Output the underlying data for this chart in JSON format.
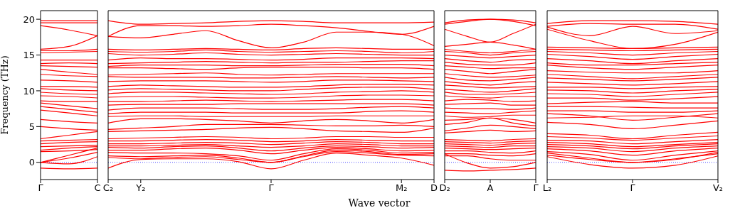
{
  "chart_data": [
    {
      "type": "line",
      "ylabel": "Frequency (THz)",
      "color": "#ff0000",
      "categories": [
        "Γ",
        null,
        "C"
      ],
      "ylim": [
        -2.4,
        21.2
      ],
      "yticks": [
        0,
        5,
        10,
        15,
        20
      ],
      "ref_lines": [
        {
          "axis": "y",
          "value": 0,
          "color": "#0000ff",
          "line_style": "dotted"
        }
      ],
      "series": [
        {
          "values": [
            19.8,
            19.8,
            19.8
          ]
        },
        {
          "values": [
            19.5,
            19.5,
            19.5
          ]
        },
        {
          "values": [
            19.1,
            18.5,
            17.7
          ]
        },
        {
          "values": [
            15.8,
            16.2,
            17.7
          ]
        },
        {
          "values": [
            15.6,
            15.6,
            15.8
          ]
        },
        {
          "values": [
            15.3,
            15.4,
            15.5
          ]
        },
        {
          "values": [
            14.3,
            14.3,
            14.3
          ]
        },
        {
          "values": [
            13.8,
            13.9,
            13.8
          ]
        },
        {
          "values": [
            13.5,
            13.4,
            13.3
          ]
        },
        {
          "values": [
            13.0,
            12.6,
            12.3
          ]
        },
        {
          "values": [
            12.3,
            12.1,
            12.0
          ]
        },
        {
          "values": [
            11.5,
            11.4,
            11.2
          ]
        },
        {
          "values": [
            10.6,
            10.6,
            10.5
          ]
        },
        {
          "values": [
            10.3,
            10.1,
            10.0
          ]
        },
        {
          "values": [
            9.8,
            9.6,
            9.5
          ]
        },
        {
          "values": [
            9.3,
            9.2,
            9.0
          ]
        },
        {
          "values": [
            8.6,
            8.5,
            8.5
          ]
        },
        {
          "values": [
            8.3,
            7.9,
            7.5
          ]
        },
        {
          "values": [
            7.8,
            7.4,
            7.0
          ]
        },
        {
          "values": [
            7.3,
            6.9,
            6.5
          ]
        },
        {
          "values": [
            6.0,
            5.7,
            5.5
          ]
        },
        {
          "values": [
            5.0,
            4.7,
            4.5
          ]
        },
        {
          "values": [
            3.3,
            3.8,
            4.3
          ]
        },
        {
          "values": [
            3.0,
            3.1,
            3.2
          ]
        },
        {
          "values": [
            2.6,
            2.8,
            2.9
          ]
        },
        {
          "values": [
            2.2,
            2.3,
            2.4
          ]
        },
        {
          "values": [
            1.7,
            2.0,
            2.2
          ]
        },
        {
          "values": [
            1.5,
            1.6,
            1.8
          ]
        },
        {
          "values": [
            0,
            1.0,
            2.0
          ]
        },
        {
          "values": [
            0,
            0.6,
            1.4
          ]
        },
        {
          "values": [
            0,
            -0.2,
            0.8
          ]
        },
        {
          "values": [
            -0.8,
            -0.9,
            -0.8
          ]
        }
      ]
    },
    {
      "type": "line",
      "xlabel": "Wave vector",
      "color": "#ff0000",
      "categories": [
        "C₂",
        "Y₂",
        null,
        null,
        null,
        "Γ",
        null,
        null,
        null,
        "M₂",
        "D"
      ],
      "ylim": [
        -2.4,
        21.2
      ],
      "yticks": [
        0,
        5,
        10,
        15,
        20
      ],
      "tick_labels": "x",
      "ref_lines": [
        {
          "axis": "y",
          "value": 0,
          "color": "#0000ff",
          "line_style": "dotted"
        }
      ],
      "series": [
        {
          "values": [
            19.8,
            19.3,
            19.4,
            19.5,
            19.7,
            19.8,
            19.7,
            19.5,
            19.5,
            19.5,
            19.6
          ]
        },
        {
          "values": [
            17.6,
            19.1,
            19.1,
            19.0,
            19.1,
            19.3,
            19.1,
            18.8,
            18.3,
            17.9,
            19.0
          ]
        },
        {
          "values": [
            17.6,
            17.4,
            17.9,
            18.4,
            17.0,
            16.0,
            16.8,
            18.2,
            18.2,
            17.9,
            16.3
          ]
        },
        {
          "values": [
            15.8,
            15.7,
            15.8,
            15.9,
            15.8,
            15.7,
            15.9,
            16.0,
            15.9,
            15.8,
            15.8
          ]
        },
        {
          "values": [
            15.5,
            15.4,
            15.5,
            15.7,
            15.5,
            15.4,
            15.5,
            15.6,
            15.5,
            15.3,
            15.5
          ]
        },
        {
          "values": [
            15.2,
            15.0,
            15.1,
            15.3,
            15.1,
            15.0,
            15.1,
            15.2,
            15.1,
            15.0,
            15.0
          ]
        },
        {
          "values": [
            14.3,
            14.6,
            14.5,
            14.5,
            14.4,
            14.3,
            14.4,
            14.6,
            14.6,
            14.6,
            14.5
          ]
        },
        {
          "values": [
            13.8,
            13.9,
            14.0,
            14.1,
            14.0,
            13.9,
            14.0,
            14.0,
            14.1,
            14.2,
            14.2
          ]
        },
        {
          "values": [
            13.4,
            13.6,
            13.6,
            13.6,
            13.5,
            13.5,
            13.6,
            13.7,
            13.7,
            13.7,
            13.5
          ]
        },
        {
          "values": [
            13.2,
            13.2,
            13.1,
            13.0,
            13.2,
            13.3,
            13.3,
            13.3,
            13.2,
            13.2,
            13.0
          ]
        },
        {
          "values": [
            12.2,
            12.3,
            12.4,
            12.5,
            12.3,
            12.2,
            12.3,
            12.4,
            12.4,
            12.4,
            12.4
          ]
        },
        {
          "values": [
            12.0,
            11.9,
            11.9,
            11.9,
            11.8,
            11.8,
            11.9,
            12.0,
            11.9,
            11.8,
            11.9
          ]
        },
        {
          "values": [
            11.3,
            11.4,
            11.4,
            11.4,
            11.3,
            11.2,
            11.3,
            11.5,
            11.5,
            11.4,
            11.3
          ]
        },
        {
          "values": [
            10.6,
            10.8,
            10.7,
            10.6,
            10.5,
            10.5,
            10.6,
            10.8,
            10.9,
            10.9,
            10.8
          ]
        },
        {
          "values": [
            10.1,
            10.3,
            10.2,
            10.1,
            10.0,
            10.0,
            10.2,
            10.4,
            10.5,
            10.5,
            10.2
          ]
        },
        {
          "values": [
            9.6,
            9.8,
            9.8,
            9.7,
            9.6,
            9.5,
            9.6,
            9.8,
            9.9,
            10.0,
            9.8
          ]
        },
        {
          "values": [
            9.1,
            9.2,
            9.2,
            9.1,
            9.0,
            9.0,
            9.1,
            9.3,
            9.4,
            9.4,
            9.3
          ]
        },
        {
          "values": [
            8.5,
            8.5,
            8.6,
            8.7,
            8.6,
            8.5,
            8.6,
            8.7,
            8.8,
            8.8,
            8.6
          ]
        },
        {
          "values": [
            8.0,
            8.1,
            8.1,
            8.1,
            8.2,
            8.2,
            8.2,
            8.2,
            8.2,
            8.2,
            8.0
          ]
        },
        {
          "values": [
            7.3,
            7.6,
            7.6,
            7.6,
            7.5,
            7.4,
            7.4,
            7.5,
            7.7,
            7.8,
            7.6
          ]
        },
        {
          "values": [
            6.8,
            7.0,
            7.0,
            7.0,
            6.9,
            6.9,
            6.9,
            6.9,
            7.1,
            7.2,
            7.0
          ]
        },
        {
          "values": [
            6.4,
            6.5,
            6.5,
            6.4,
            6.4,
            6.4,
            6.4,
            6.5,
            6.5,
            6.5,
            6.5
          ]
        },
        {
          "values": [
            5.5,
            6.1,
            6.1,
            6.0,
            5.8,
            5.5,
            5.8,
            6.0,
            5.8,
            5.5,
            6.0
          ]
        },
        {
          "values": [
            4.6,
            4.8,
            5.0,
            5.3,
            5.3,
            5.3,
            5.2,
            5.1,
            5.1,
            5.2,
            5.0
          ]
        },
        {
          "values": [
            4.3,
            4.4,
            4.5,
            4.6,
            4.8,
            4.9,
            4.7,
            4.4,
            4.3,
            4.2,
            4.8
          ]
        },
        {
          "values": [
            3.3,
            3.4,
            3.5,
            3.6,
            3.5,
            3.3,
            3.4,
            3.6,
            3.6,
            3.5,
            3.5
          ]
        },
        {
          "values": [
            3.0,
            3.0,
            3.1,
            3.2,
            3.1,
            2.9,
            3.0,
            3.2,
            3.1,
            3.0,
            3.0
          ]
        },
        {
          "values": [
            2.6,
            2.6,
            2.7,
            2.8,
            2.7,
            2.5,
            2.7,
            2.9,
            2.8,
            2.6,
            2.6
          ]
        },
        {
          "values": [
            2.3,
            2.3,
            2.4,
            2.5,
            2.3,
            2.1,
            2.3,
            2.6,
            2.5,
            2.3,
            2.3
          ]
        },
        {
          "values": [
            2.1,
            2.0,
            2.2,
            2.3,
            2.0,
            1.6,
            2.0,
            2.3,
            2.2,
            2.0,
            2.1
          ]
        },
        {
          "values": [
            1.7,
            1.7,
            1.9,
            2.0,
            1.7,
            1.2,
            1.7,
            2.1,
            1.9,
            1.6,
            1.7
          ]
        },
        {
          "values": [
            1.4,
            1.3,
            1.3,
            1.2,
            0.9,
            0.3,
            1.2,
            1.9,
            1.7,
            1.3,
            1.4
          ]
        },
        {
          "values": [
            0.9,
            0.8,
            0.9,
            1.0,
            0.6,
            0,
            0.9,
            1.7,
            1.5,
            1.1,
            1.2
          ]
        },
        {
          "values": [
            0.7,
            0.5,
            0.7,
            0.8,
            0.4,
            0,
            0.8,
            1.5,
            1.3,
            1.0,
            0.9
          ]
        },
        {
          "values": [
            -0.8,
            0.4,
            0.5,
            0.5,
            0.1,
            -0.9,
            0.3,
            1.3,
            1.0,
            0.6,
            -0.4
          ]
        }
      ]
    },
    {
      "type": "line",
      "color": "#ff0000",
      "categories": [
        "D₂",
        null,
        "A",
        null,
        "Γ"
      ],
      "ylim": [
        -2.4,
        21.2
      ],
      "yticks": [
        0,
        5,
        10,
        15,
        20
      ],
      "tick_labels": "x",
      "ref_lines": [
        {
          "axis": "y",
          "value": 0,
          "color": "#0000ff",
          "line_style": "dotted"
        }
      ],
      "series": [
        {
          "values": [
            19.5,
            19.9,
            20.0,
            19.9,
            19.5
          ]
        },
        {
          "values": [
            19.3,
            19.7,
            20.0,
            19.7,
            19.1
          ]
        },
        {
          "values": [
            18.6,
            17.6,
            16.8,
            18.0,
            19.3
          ]
        },
        {
          "values": [
            16.2,
            16.5,
            16.8,
            16.4,
            15.8
          ]
        },
        {
          "values": [
            15.8,
            15.5,
            15.3,
            15.5,
            15.8
          ]
        },
        {
          "values": [
            15.5,
            15.3,
            15.0,
            15.3,
            15.5
          ]
        },
        {
          "values": [
            15.0,
            14.8,
            14.6,
            14.8,
            15.0
          ]
        },
        {
          "values": [
            14.5,
            14.2,
            14.0,
            14.3,
            14.4
          ]
        },
        {
          "values": [
            14.0,
            13.7,
            13.6,
            13.6,
            13.9
          ]
        },
        {
          "values": [
            13.5,
            13.3,
            13.1,
            13.2,
            13.2
          ]
        },
        {
          "values": [
            13.0,
            12.7,
            12.4,
            12.7,
            13.0
          ]
        },
        {
          "values": [
            12.4,
            12.1,
            11.9,
            12.0,
            12.2
          ]
        },
        {
          "values": [
            11.9,
            11.5,
            11.4,
            11.6,
            11.9
          ]
        },
        {
          "values": [
            11.3,
            11.0,
            10.8,
            11.1,
            11.3
          ]
        },
        {
          "values": [
            10.8,
            10.6,
            10.4,
            10.5,
            10.6
          ]
        },
        {
          "values": [
            10.2,
            10.0,
            9.8,
            10.0,
            10.3
          ]
        },
        {
          "values": [
            9.8,
            9.5,
            9.5,
            9.6,
            9.8
          ]
        },
        {
          "values": [
            9.3,
            9.1,
            9.0,
            9.2,
            9.2
          ]
        },
        {
          "values": [
            8.6,
            8.8,
            8.7,
            8.5,
            8.6
          ]
        },
        {
          "values": [
            8.1,
            8.2,
            8.3,
            8.0,
            8.0
          ]
        },
        {
          "values": [
            7.6,
            7.5,
            7.5,
            7.4,
            7.6
          ]
        },
        {
          "values": [
            7.0,
            6.9,
            6.8,
            7.0,
            7.2
          ]
        },
        {
          "values": [
            6.5,
            6.3,
            6.4,
            6.6,
            6.6
          ]
        },
        {
          "values": [
            5.9,
            6.0,
            6.2,
            6.0,
            5.5
          ]
        },
        {
          "values": [
            5.3,
            5.6,
            6.2,
            5.5,
            5.1
          ]
        },
        {
          "values": [
            4.4,
            4.8,
            5.2,
            5.0,
            4.7
          ]
        },
        {
          "values": [
            4.1,
            4.3,
            4.5,
            4.3,
            4.4
          ]
        },
        {
          "values": [
            3.2,
            3.1,
            3.0,
            3.2,
            3.3
          ]
        },
        {
          "values": [
            2.9,
            2.8,
            2.7,
            2.9,
            3.0
          ]
        },
        {
          "values": [
            2.6,
            2.5,
            2.4,
            2.6,
            2.7
          ]
        },
        {
          "values": [
            2.3,
            2.2,
            2.1,
            2.3,
            2.3
          ]
        },
        {
          "values": [
            2.0,
            1.9,
            1.8,
            1.9,
            2.0
          ]
        },
        {
          "values": [
            1.6,
            1.6,
            1.4,
            1.3,
            1.6
          ]
        },
        {
          "values": [
            1.2,
            1.2,
            1.0,
            0.9,
            1.2
          ]
        },
        {
          "values": [
            0.9,
            0.9,
            0.5,
            0.3,
            0.3
          ]
        },
        {
          "values": [
            1.2,
            -0.1,
            -0.8,
            -0.6,
            0
          ]
        },
        {
          "values": [
            -1.1,
            -1.2,
            -1.1,
            -1.0,
            -0.8
          ]
        }
      ]
    },
    {
      "type": "line",
      "color": "#ff0000",
      "categories": [
        "L₂",
        null,
        "Γ",
        null,
        "V₂"
      ],
      "ylim": [
        -2.4,
        21.2
      ],
      "yticks": [
        0,
        5,
        10,
        15,
        20
      ],
      "tick_labels": "x",
      "ref_lines": [
        {
          "axis": "y",
          "value": 0,
          "color": "#0000ff",
          "line_style": "dotted"
        }
      ],
      "series": [
        {
          "values": [
            19.4,
            19.8,
            19.8,
            19.7,
            19.3
          ]
        },
        {
          "values": [
            19.0,
            19.4,
            19.3,
            19.3,
            18.6
          ]
        },
        {
          "values": [
            18.9,
            17.7,
            19.0,
            18.0,
            18.4
          ]
        },
        {
          "values": [
            18.6,
            17.0,
            15.9,
            16.5,
            18.2
          ]
        },
        {
          "values": [
            16.1,
            16.0,
            15.9,
            16.0,
            16.1
          ]
        },
        {
          "values": [
            15.8,
            15.7,
            15.6,
            15.7,
            15.8
          ]
        },
        {
          "values": [
            15.5,
            15.3,
            15.0,
            15.3,
            15.5
          ]
        },
        {
          "values": [
            15.1,
            14.8,
            14.4,
            14.8,
            15.1
          ]
        },
        {
          "values": [
            14.5,
            14.2,
            13.8,
            14.2,
            14.5
          ]
        },
        {
          "values": [
            13.9,
            13.6,
            13.6,
            13.8,
            14.0
          ]
        },
        {
          "values": [
            13.6,
            13.2,
            13.0,
            13.3,
            13.6
          ]
        },
        {
          "values": [
            12.8,
            12.6,
            12.5,
            12.5,
            12.8
          ]
        },
        {
          "values": [
            12.3,
            12.0,
            11.7,
            12.0,
            12.3
          ]
        },
        {
          "values": [
            11.8,
            11.6,
            11.4,
            11.6,
            11.9
          ]
        },
        {
          "values": [
            11.2,
            11.0,
            10.8,
            11.0,
            11.3
          ]
        },
        {
          "values": [
            10.5,
            10.5,
            10.3,
            10.5,
            10.6
          ]
        },
        {
          "values": [
            10.1,
            10.0,
            9.7,
            10.0,
            10.2
          ]
        },
        {
          "values": [
            9.6,
            9.5,
            9.2,
            9.5,
            9.8
          ]
        },
        {
          "values": [
            9.0,
            9.0,
            8.7,
            8.9,
            9.2
          ]
        },
        {
          "values": [
            8.2,
            8.4,
            8.5,
            8.3,
            8.3
          ]
        },
        {
          "values": [
            7.8,
            7.8,
            7.7,
            7.6,
            7.6
          ]
        },
        {
          "values": [
            7.2,
            7.2,
            7.0,
            7.0,
            7.2
          ]
        },
        {
          "values": [
            6.8,
            6.5,
            5.9,
            6.3,
            6.8
          ]
        },
        {
          "values": [
            6.2,
            6.3,
            6.5,
            6.5,
            6.2
          ]
        },
        {
          "values": [
            5.6,
            5.3,
            4.7,
            5.2,
            5.8
          ]
        },
        {
          "values": [
            4.0,
            3.8,
            3.3,
            3.8,
            4.2
          ]
        },
        {
          "values": [
            3.6,
            3.4,
            3.1,
            3.4,
            3.7
          ]
        },
        {
          "values": [
            3.1,
            3.0,
            2.6,
            2.9,
            3.2
          ]
        },
        {
          "values": [
            2.8,
            2.6,
            2.2,
            2.5,
            2.8
          ]
        },
        {
          "values": [
            2.5,
            2.3,
            1.9,
            2.3,
            2.6
          ]
        },
        {
          "values": [
            2.2,
            2.0,
            1.5,
            2.0,
            2.3
          ]
        },
        {
          "values": [
            1.9,
            1.6,
            1.0,
            1.6,
            2.0
          ]
        },
        {
          "values": [
            1.5,
            1.1,
            0.3,
            1.0,
            1.6
          ]
        },
        {
          "values": [
            1.3,
            0.6,
            0,
            0.5,
            1.2
          ]
        },
        {
          "values": [
            1.0,
            0.4,
            0,
            0.4,
            1.4
          ]
        },
        {
          "values": [
            0.8,
            -0.3,
            -0.8,
            -0.4,
            0.9
          ]
        }
      ]
    }
  ]
}
